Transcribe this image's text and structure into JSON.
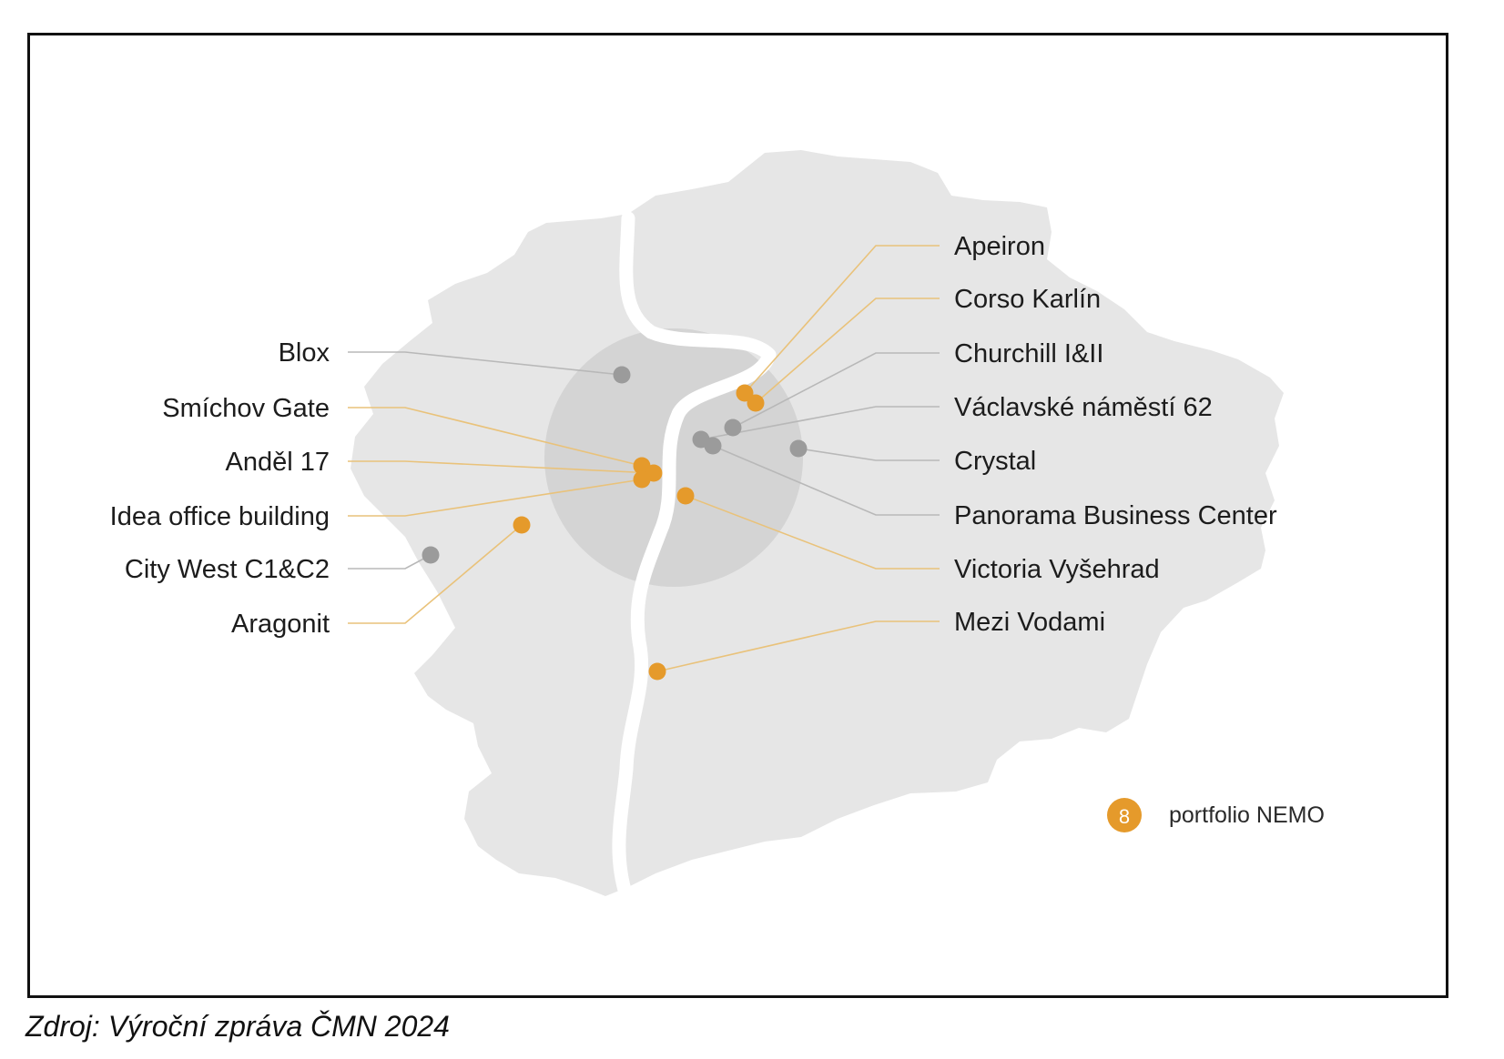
{
  "map": {
    "legend": {
      "count": "8",
      "label": "portfolio NEMO"
    },
    "colors": {
      "portfolio_nemo": "#e59a2b",
      "other": "#9b9b9b",
      "city_area": "#e6e6e6",
      "center_zone": "#d4d4d4",
      "river": "#ffffff",
      "leader_portfolio": "#e9c27a",
      "leader_other": "#b8b8b8"
    },
    "locations": [
      {
        "name": "Blox",
        "portfolio_nemo": false
      },
      {
        "name": "Smíchov Gate",
        "portfolio_nemo": true
      },
      {
        "name": "Anděl 17",
        "portfolio_nemo": true
      },
      {
        "name": "Idea office building",
        "portfolio_nemo": true
      },
      {
        "name": "City West C1&C2",
        "portfolio_nemo": false
      },
      {
        "name": "Aragonit",
        "portfolio_nemo": true
      },
      {
        "name": "Apeiron",
        "portfolio_nemo": true
      },
      {
        "name": "Corso Karlín",
        "portfolio_nemo": true
      },
      {
        "name": "Churchill I&II",
        "portfolio_nemo": false
      },
      {
        "name": "Václavské náměstí 62",
        "portfolio_nemo": false
      },
      {
        "name": "Crystal",
        "portfolio_nemo": false
      },
      {
        "name": "Panorama Business Center",
        "portfolio_nemo": false
      },
      {
        "name": "Victoria Vyšehrad",
        "portfolio_nemo": true
      },
      {
        "name": "Mezi Vodami",
        "portfolio_nemo": true
      }
    ]
  },
  "source": "Zdroj: Výroční zpráva ČMN 2024"
}
